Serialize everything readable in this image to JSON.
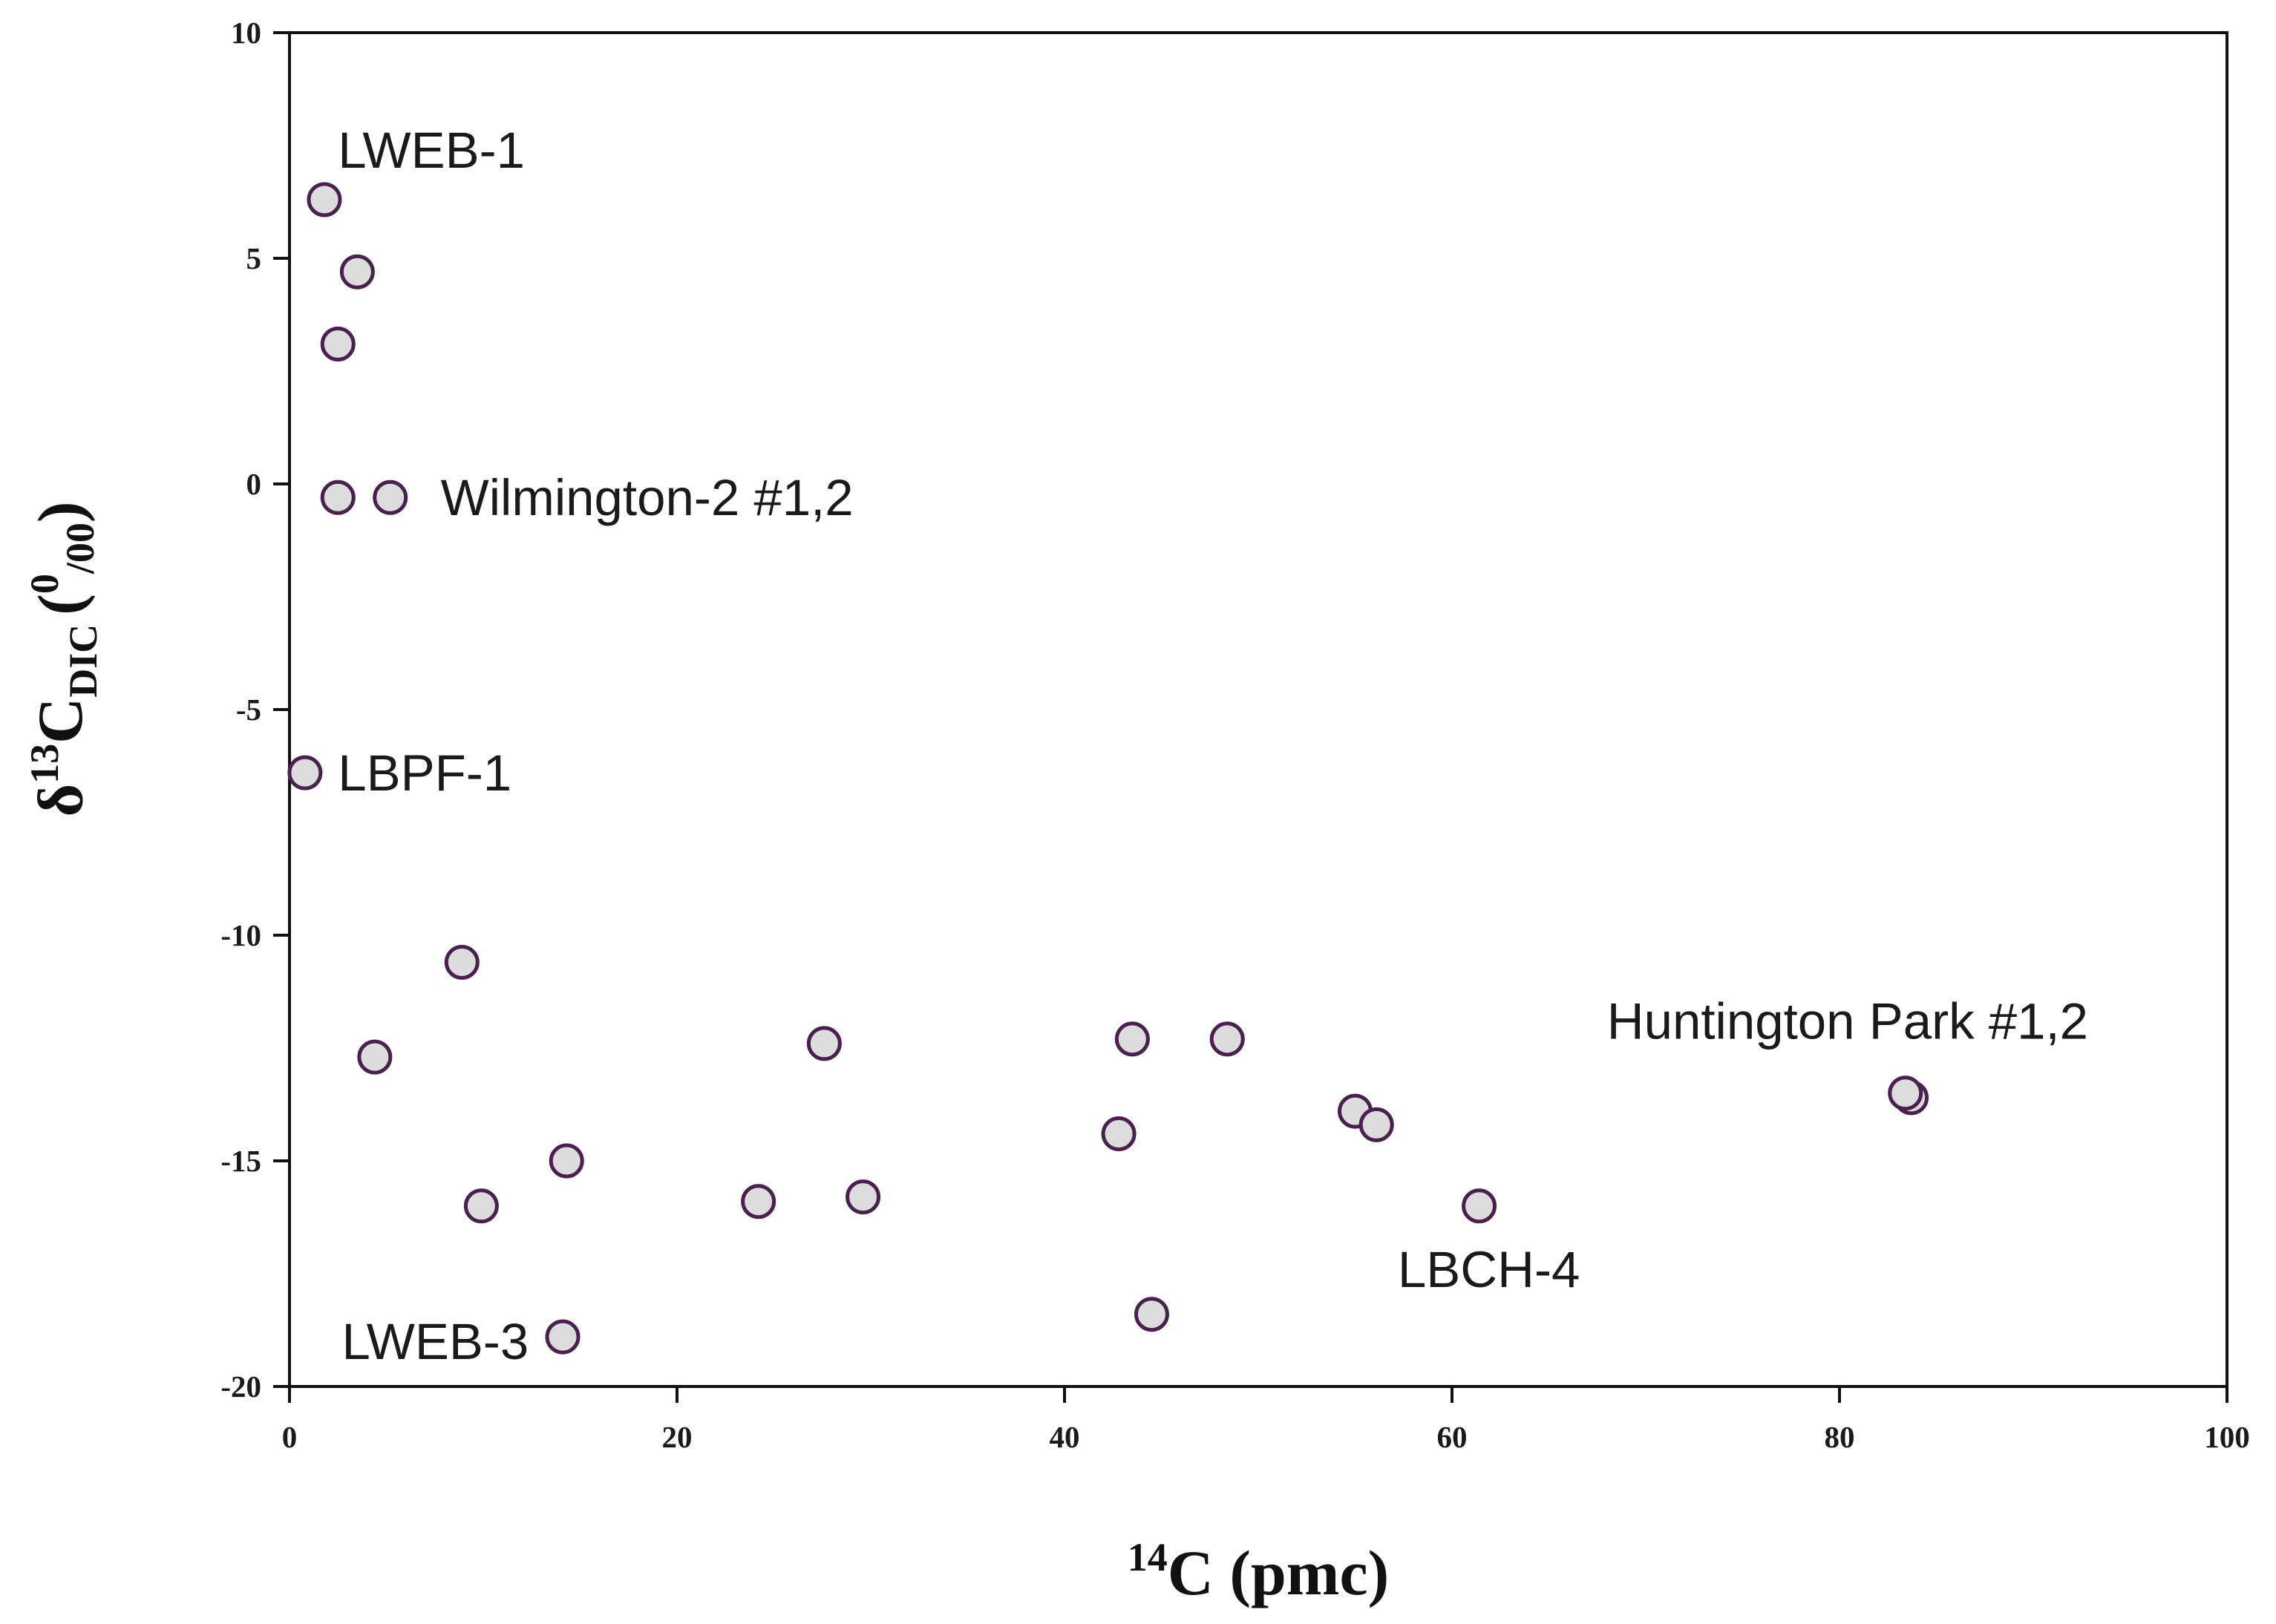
{
  "chart_data": {
    "type": "scatter",
    "title": "",
    "xlabel": {
      "superscript": "14",
      "main": "C (pmc)"
    },
    "ylabel": {
      "prefix": "δ",
      "superscript": "13",
      "main": "C",
      "subscript": "DIC",
      "unit_open": "(",
      "unit_sup": "0",
      "unit_sub": "/00",
      "unit_close": ")"
    },
    "xlim": [
      0,
      100
    ],
    "ylim": [
      -20,
      10
    ],
    "xticks": [
      0,
      20,
      40,
      60,
      80,
      100
    ],
    "yticks": [
      -20,
      -15,
      -10,
      -5,
      0,
      5,
      10
    ],
    "grid": false,
    "marker": {
      "fill": "#dcdcdc",
      "stroke": "#4b1f4f"
    },
    "points": [
      {
        "x": 1.8,
        "y": 6.3
      },
      {
        "x": 3.5,
        "y": 4.7
      },
      {
        "x": 2.5,
        "y": 3.1
      },
      {
        "x": 2.5,
        "y": -0.3
      },
      {
        "x": 5.2,
        "y": -0.3
      },
      {
        "x": 0.8,
        "y": -6.4
      },
      {
        "x": 8.9,
        "y": -10.6
      },
      {
        "x": 4.4,
        "y": -12.7
      },
      {
        "x": 9.9,
        "y": -16.0
      },
      {
        "x": 14.3,
        "y": -15.0
      },
      {
        "x": 14.1,
        "y": -18.9
      },
      {
        "x": 24.2,
        "y": -15.9
      },
      {
        "x": 27.6,
        "y": -12.4
      },
      {
        "x": 29.6,
        "y": -15.8
      },
      {
        "x": 42.8,
        "y": -14.4
      },
      {
        "x": 43.5,
        "y": -12.3
      },
      {
        "x": 44.5,
        "y": -18.4
      },
      {
        "x": 48.4,
        "y": -12.3
      },
      {
        "x": 55.0,
        "y": -13.9
      },
      {
        "x": 56.1,
        "y": -14.2
      },
      {
        "x": 61.4,
        "y": -16.0
      },
      {
        "x": 83.7,
        "y": -13.6
      },
      {
        "x": 83.4,
        "y": -13.5
      }
    ],
    "annotations": [
      {
        "text": "LWEB-1",
        "x": 2.5,
        "y": 7.4
      },
      {
        "text": "Wilmington-2 #1,2",
        "x": 7.8,
        "y": -0.3
      },
      {
        "text": "LBPF-1",
        "x": 2.5,
        "y": -6.4
      },
      {
        "text": "Huntington Park #1,2",
        "x": 68.0,
        "y": -11.9
      },
      {
        "text": "LBCH-4",
        "x": 57.2,
        "y": -17.4
      },
      {
        "text": "LWEB-3",
        "x": 2.7,
        "y": -19.0
      }
    ]
  }
}
